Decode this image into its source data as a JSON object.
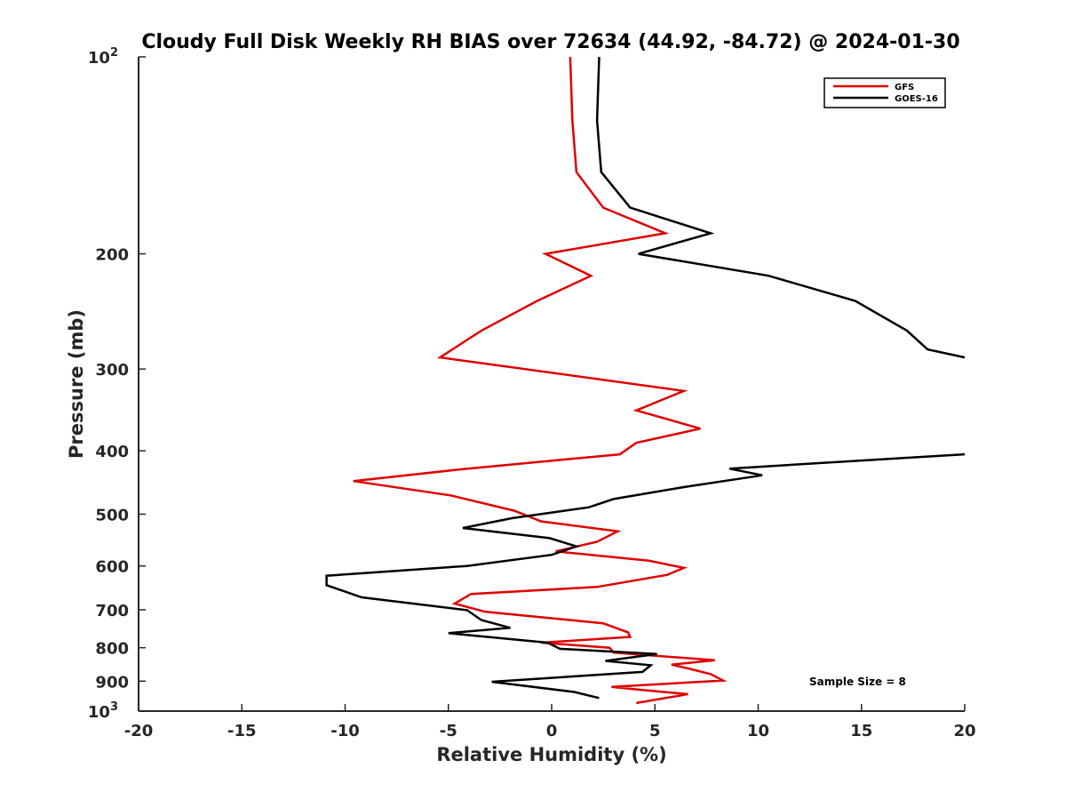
{
  "chart_data": {
    "type": "line",
    "title": "Cloudy Full Disk Weekly RH BIAS over 72634 (44.92, -84.72) @ 2024-01-30",
    "xlabel": "Relative Humidity (%)",
    "ylabel": "Pressure (mb)",
    "xlim": [
      -20,
      20
    ],
    "ylim": [
      100,
      1000
    ],
    "yscale": "log",
    "y_reversed": true,
    "grid": false,
    "legend_position": "top-right",
    "x_ticks": [
      {
        "value": -20,
        "label": "-20"
      },
      {
        "value": -15,
        "label": "-15"
      },
      {
        "value": -10,
        "label": "-10"
      },
      {
        "value": -5,
        "label": "-5"
      },
      {
        "value": 0,
        "label": "0"
      },
      {
        "value": 5,
        "label": "5"
      },
      {
        "value": 10,
        "label": "10"
      },
      {
        "value": 15,
        "label": "15"
      },
      {
        "value": 20,
        "label": "20"
      }
    ],
    "y_ticks": [
      {
        "value": 100,
        "label": "10",
        "sup": "2"
      },
      {
        "value": 200,
        "label": "200"
      },
      {
        "value": 300,
        "label": "300"
      },
      {
        "value": 400,
        "label": "400"
      },
      {
        "value": 500,
        "label": "500"
      },
      {
        "value": 600,
        "label": "600"
      },
      {
        "value": 700,
        "label": "700"
      },
      {
        "value": 800,
        "label": "800"
      },
      {
        "value": 900,
        "label": "900"
      },
      {
        "value": 1000,
        "label": "10",
        "sup": "3"
      }
    ],
    "annotation": "Sample Size = 8",
    "series": [
      {
        "name": "GFS",
        "color": "#e00000",
        "points": [
          [
            0.9,
            100
          ],
          [
            1.0,
            125
          ],
          [
            1.2,
            150
          ],
          [
            2.5,
            170
          ],
          [
            5.5,
            186
          ],
          [
            -0.3,
            200
          ],
          [
            1.9,
            216
          ],
          [
            -0.7,
            236
          ],
          [
            -3.4,
            262
          ],
          [
            -5.4,
            288
          ],
          [
            6.4,
            324
          ],
          [
            4.1,
            347
          ],
          [
            7.2,
            370
          ],
          [
            4.1,
            389
          ],
          [
            3.3,
            405
          ],
          [
            -4.4,
            427
          ],
          [
            -9.6,
            445
          ],
          [
            -4.9,
            468
          ],
          [
            -1.8,
            494
          ],
          [
            -0.5,
            513
          ],
          [
            3.2,
            531
          ],
          [
            2.2,
            551
          ],
          [
            0.2,
            570
          ],
          [
            4.7,
            589
          ],
          [
            6.4,
            604
          ],
          [
            5.6,
            619
          ],
          [
            2.2,
            646
          ],
          [
            -3.9,
            662
          ],
          [
            -4.7,
            685
          ],
          [
            -3.2,
            705
          ],
          [
            2.5,
            734
          ],
          [
            3.7,
            758
          ],
          [
            3.8,
            770
          ],
          [
            -0.5,
            786
          ],
          [
            2.8,
            800
          ],
          [
            3.0,
            814
          ],
          [
            7.9,
            836
          ],
          [
            5.8,
            849
          ],
          [
            6.7,
            862
          ],
          [
            7.7,
            878
          ],
          [
            8.3,
            898
          ],
          [
            2.9,
            918
          ],
          [
            4.5,
            929
          ],
          [
            6.6,
            942
          ],
          [
            4.1,
            972
          ]
        ]
      },
      {
        "name": "GOES-16",
        "color": "#000000",
        "points": [
          [
            2.3,
            100
          ],
          [
            2.2,
            125
          ],
          [
            2.4,
            150
          ],
          [
            3.8,
            170
          ],
          [
            7.7,
            186
          ],
          [
            4.2,
            200
          ],
          [
            10.5,
            216
          ],
          [
            14.7,
            236
          ],
          [
            17.2,
            262
          ],
          [
            18.2,
            280
          ],
          [
            20.0,
            288
          ],
          [
            null,
            320
          ],
          [
            20.0,
            405
          ],
          [
            17.2,
            410
          ],
          [
            8.6,
            426
          ],
          [
            10.2,
            436
          ],
          [
            6.5,
            454
          ],
          [
            3.0,
            474
          ],
          [
            1.8,
            488
          ],
          [
            -1.9,
            507
          ],
          [
            -4.3,
            525
          ],
          [
            -0.1,
            544
          ],
          [
            1.2,
            560
          ],
          [
            0.0,
            577
          ],
          [
            -4.1,
            600
          ],
          [
            -10.9,
            621
          ],
          [
            -10.9,
            642
          ],
          [
            -9.2,
            670
          ],
          [
            -4.1,
            701
          ],
          [
            -3.4,
            726
          ],
          [
            -2.0,
            746
          ],
          [
            -5.0,
            760
          ],
          [
            -0.2,
            786
          ],
          [
            0.4,
            803
          ],
          [
            5.1,
            818
          ],
          [
            2.6,
            838
          ],
          [
            4.8,
            851
          ],
          [
            4.4,
            871
          ],
          [
            -2.9,
            902
          ],
          [
            1.1,
            935
          ],
          [
            2.3,
            955
          ]
        ]
      }
    ]
  }
}
